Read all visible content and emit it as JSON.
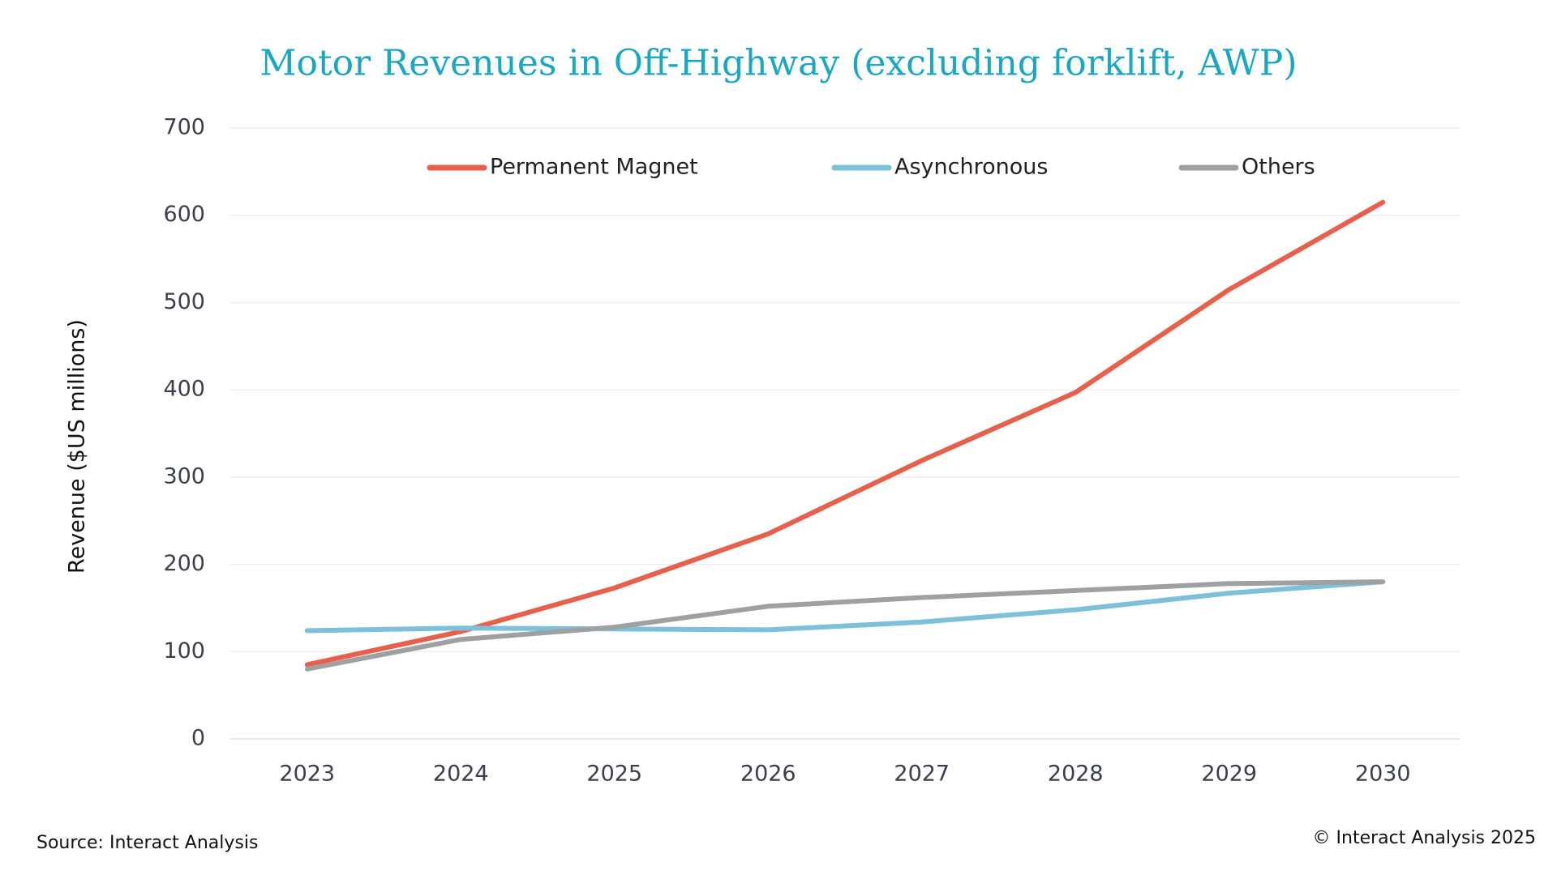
{
  "chart_data": {
    "type": "line",
    "title": "Motor Revenues in Off-Highway (excluding forklift, AWP)",
    "y_label": "Revenue ($US millions)",
    "categories": [
      "2023",
      "2024",
      "2025",
      "2026",
      "2027",
      "2028",
      "2029",
      "2030"
    ],
    "series": [
      {
        "name": "Permanent Magnet",
        "color": "#e8604c",
        "values": [
          85,
          123,
          173,
          235,
          319,
          397,
          515,
          615
        ]
      },
      {
        "name": "Asynchronous",
        "color": "#7dc0d9",
        "values": [
          124,
          127,
          126,
          125,
          134,
          148,
          167,
          180
        ]
      },
      {
        "name": "Others",
        "color": "#9ea1a4",
        "values": [
          80,
          114,
          128,
          152,
          162,
          170,
          178,
          180
        ]
      }
    ],
    "ylim": [
      0,
      700
    ],
    "yticks": [
      0,
      100,
      200,
      300,
      400,
      500,
      600,
      700
    ],
    "grid": true,
    "legend": "top",
    "source": "Source: Interact Analysis",
    "copyright": "© Interact Analysis 2025"
  }
}
